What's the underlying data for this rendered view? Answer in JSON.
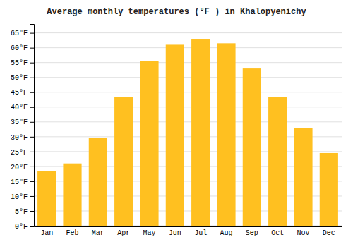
{
  "chart_data": {
    "type": "bar",
    "title": "Average monthly temperatures (°F ) in Khalopyenichy",
    "categories": [
      "Jan",
      "Feb",
      "Mar",
      "Apr",
      "May",
      "Jun",
      "Jul",
      "Aug",
      "Sep",
      "Oct",
      "Nov",
      "Dec"
    ],
    "values": [
      18.5,
      21,
      29.5,
      43.5,
      55.5,
      61,
      63,
      61.5,
      53,
      43.5,
      33,
      24.5
    ],
    "color": "#FFC020",
    "ylim": [
      0,
      68
    ],
    "yticks": [
      {
        "value": 0,
        "label": "0°F"
      },
      {
        "value": 5,
        "label": "5°F"
      },
      {
        "value": 10,
        "label": "10°F"
      },
      {
        "value": 15,
        "label": "15°F"
      },
      {
        "value": 20,
        "label": "20°F"
      },
      {
        "value": 25,
        "label": "25°F"
      },
      {
        "value": 30,
        "label": "30°F"
      },
      {
        "value": 35,
        "label": "35°F"
      },
      {
        "value": 40,
        "label": "40°F"
      },
      {
        "value": 45,
        "label": "45°F"
      },
      {
        "value": 50,
        "label": "50°F"
      },
      {
        "value": 55,
        "label": "55°F"
      },
      {
        "value": 60,
        "label": "60°F"
      },
      {
        "value": 65,
        "label": "65°F"
      }
    ],
    "grid": true
  }
}
